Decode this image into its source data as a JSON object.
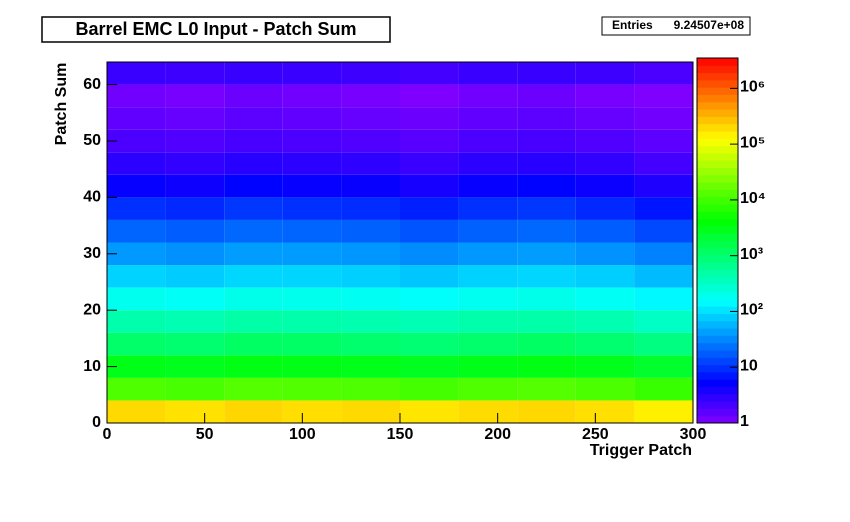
{
  "chart_data": {
    "type": "heatmap",
    "title": "Barrel EMC L0 Input - Patch Sum",
    "stats_label": "Entries",
    "stats_value": "9.24507e+08",
    "x_label": "Trigger Patch",
    "y_label": "Patch Sum",
    "xbins": [
      0,
      30,
      60,
      90,
      120,
      150,
      180,
      210,
      240,
      270,
      300
    ],
    "ybins": [
      0,
      4,
      8,
      12,
      16,
      20,
      24,
      28,
      32,
      36,
      40,
      44,
      48,
      52,
      56,
      60,
      64
    ],
    "z": [
      [
        200000,
        180000,
        210000,
        190000,
        200000,
        170000,
        195000,
        205000,
        185000,
        150000
      ],
      [
        12000,
        11000,
        13000,
        12500,
        11800,
        10500,
        12200,
        12800,
        11500,
        9000
      ],
      [
        3200,
        3000,
        3400,
        3300,
        3100,
        2800,
        3150,
        3350,
        3050,
        2400
      ],
      [
        1100,
        1000,
        1200,
        1150,
        1050,
        950,
        1080,
        1180,
        1020,
        800
      ],
      [
        450,
        420,
        480,
        460,
        440,
        400,
        455,
        470,
        430,
        330
      ],
      [
        190,
        170,
        200,
        195,
        180,
        160,
        185,
        198,
        175,
        140
      ],
      [
        85,
        78,
        90,
        88,
        82,
        72,
        84,
        89,
        80,
        62
      ],
      [
        40,
        36,
        42,
        41,
        38,
        33,
        39,
        42,
        37,
        29
      ],
      [
        20,
        18,
        21,
        20,
        19,
        16,
        19,
        21,
        18,
        14
      ],
      [
        10,
        9,
        11,
        10,
        9.5,
        8,
        10,
        11,
        9,
        7
      ],
      [
        5,
        4.5,
        5.5,
        5,
        4.8,
        4,
        5,
        5.5,
        4.6,
        3.6
      ],
      [
        3,
        2.8,
        3.2,
        3,
        2.9,
        2.5,
        3,
        3.2,
        2.8,
        2.2
      ],
      [
        2,
        1.9,
        2.1,
        2,
        1.9,
        1.7,
        2,
        2.1,
        1.9,
        1.6
      ],
      [
        1.5,
        1.4,
        1.6,
        1.5,
        1.4,
        1.3,
        1.5,
        1.6,
        1.4,
        1.2
      ],
      [
        1.2,
        1.1,
        1.3,
        1.2,
        1.1,
        1,
        1.2,
        1.3,
        1.1,
        1
      ],
      [
        2.5,
        2.4,
        2.6,
        2.5,
        2.4,
        2.2,
        2.5,
        2.6,
        2.4,
        2
      ]
    ],
    "xlim": [
      0,
      300
    ],
    "xticks": [
      0,
      50,
      100,
      150,
      200,
      250,
      300
    ],
    "ylim": [
      0,
      64
    ],
    "yticks": [
      0,
      10,
      20,
      30,
      40,
      50,
      60
    ],
    "zlim": [
      1,
      3500000
    ],
    "zlog": true,
    "zticks": [
      1,
      10,
      {
        "value": 100,
        "label": "10²"
      },
      {
        "value": 1000,
        "label": "10³"
      },
      {
        "value": 10000,
        "label": "10⁴"
      },
      {
        "value": 100000,
        "label": "10⁵"
      },
      {
        "value": 1000000,
        "label": "10⁶"
      }
    ]
  }
}
